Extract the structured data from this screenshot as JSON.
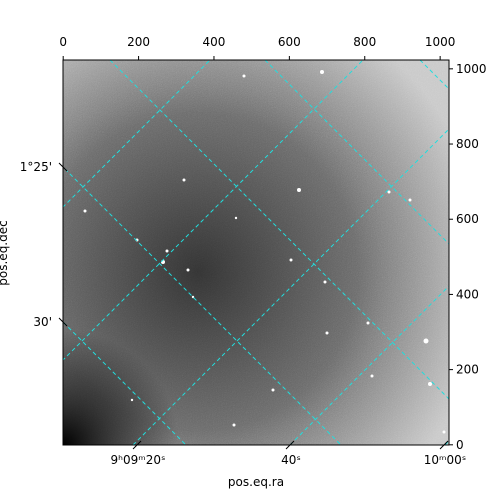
{
  "chart_data": {
    "type": "image",
    "xlabel": "pos.eq.ra",
    "ylabel": "pos.eq.dec",
    "xlim": [
      -0.5,
      1023.5
    ],
    "ylim": [
      -0.5,
      1023.5
    ],
    "xticks": [
      0,
      200,
      400,
      600,
      800,
      1000
    ],
    "yticks": [
      0,
      200,
      400,
      600,
      800,
      1000
    ],
    "ra_tick_labels": [
      "9ʰ09ᵐ20ˢ",
      "40ˢ",
      "10ᵐ00ˢ"
    ],
    "dec_tick_labels": [
      "1°25'",
      "30'"
    ],
    "grid_color": "#22dddd",
    "grid": true
  }
}
